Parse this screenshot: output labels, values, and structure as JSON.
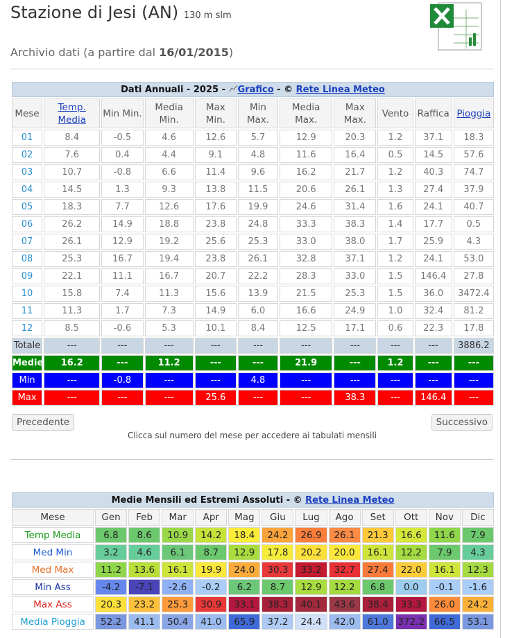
{
  "header": {
    "title": "Stazione di Jesi (AN)",
    "altitude": "130 m slm",
    "archive_prefix": "Archivio dati (a partire dal",
    "archive_date": "16/01/2015",
    "archive_suffix": ")"
  },
  "annual_table": {
    "title": "Dati Annuali - 2025 -",
    "chart_link": "Grafico",
    "copyright": "- ©",
    "source_link": "Rete Linea Meteo",
    "columns": [
      "Mese",
      "Temp. Media",
      "Min Min.",
      "Media Min.",
      "Max Min.",
      "Min Max.",
      "Media Max.",
      "Max Max.",
      "Vento",
      "Raffica",
      "Pioggia"
    ],
    "rows": [
      {
        "label": "01",
        "cells": [
          "8.4",
          "-0.5",
          "4.6",
          "12.6",
          "5.7",
          "12.9",
          "20.3",
          "1.2",
          "37.1",
          "18.3"
        ]
      },
      {
        "label": "02",
        "cells": [
          "7.6",
          "0.4",
          "4.4",
          "9.1",
          "4.8",
          "11.6",
          "16.4",
          "0.5",
          "14.5",
          "57.6"
        ]
      },
      {
        "label": "03",
        "cells": [
          "10.7",
          "-0.8",
          "6.6",
          "11.4",
          "9.6",
          "16.2",
          "21.7",
          "1.2",
          "40.3",
          "74.7"
        ]
      },
      {
        "label": "04",
        "cells": [
          "14.5",
          "1.3",
          "9.3",
          "13.8",
          "11.5",
          "20.6",
          "26.1",
          "1.3",
          "27.4",
          "37.9"
        ]
      },
      {
        "label": "05",
        "cells": [
          "18.3",
          "7.7",
          "12.6",
          "17.6",
          "19.9",
          "24.6",
          "31.4",
          "1.6",
          "24.1",
          "40.7"
        ]
      },
      {
        "label": "06",
        "cells": [
          "26.2",
          "14.9",
          "18.8",
          "23.8",
          "24.8",
          "33.3",
          "38.3",
          "1.4",
          "17.7",
          "0.5"
        ]
      },
      {
        "label": "07",
        "cells": [
          "26.1",
          "12.9",
          "19.2",
          "25.6",
          "25.3",
          "33.0",
          "38.0",
          "1.7",
          "25.9",
          "4.3"
        ]
      },
      {
        "label": "08",
        "cells": [
          "25.3",
          "16.7",
          "19.4",
          "23.8",
          "26.1",
          "32.8",
          "37.1",
          "1.2",
          "24.1",
          "53.0"
        ]
      },
      {
        "label": "09",
        "cells": [
          "22.1",
          "11.1",
          "16.7",
          "20.7",
          "22.2",
          "28.3",
          "33.0",
          "1.5",
          "146.4",
          "27.8"
        ]
      },
      {
        "label": "10",
        "cells": [
          "15.8",
          "7.4",
          "11.3",
          "15.6",
          "13.9",
          "21.5",
          "25.3",
          "1.5",
          "36.0",
          "3472.4"
        ]
      },
      {
        "label": "11",
        "cells": [
          "11.3",
          "1.7",
          "7.3",
          "14.9",
          "6.0",
          "16.6",
          "24.9",
          "1.0",
          "32.4",
          "81.2"
        ]
      },
      {
        "label": "12",
        "cells": [
          "8.5",
          "-0.6",
          "5.3",
          "10.1",
          "8.4",
          "12.5",
          "17.1",
          "0.6",
          "22.3",
          "17.8"
        ]
      }
    ],
    "summary_rows": [
      {
        "label": "Totale",
        "cells": [
          "---",
          "---",
          "---",
          "---",
          "---",
          "---",
          "---",
          "---",
          "---",
          "3886.2"
        ]
      },
      {
        "label": "Medie",
        "cells": [
          "16.2",
          "---",
          "11.2",
          "---",
          "---",
          "21.9",
          "---",
          "1.2",
          "---",
          "---"
        ]
      },
      {
        "label": "Min",
        "cells": [
          "---",
          "-0.8",
          "---",
          "---",
          "4.8",
          "---",
          "---",
          "---",
          "---",
          "---"
        ]
      },
      {
        "label": "Max",
        "cells": [
          "---",
          "---",
          "---",
          "25.6",
          "---",
          "---",
          "38.3",
          "---",
          "146.4",
          "---"
        ]
      }
    ]
  },
  "buttons": {
    "previous": "Precedente",
    "next": "Successivo"
  },
  "note": "Clicca sul numero del mese per accedere ai tabulati mensili",
  "monthly_table": {
    "title": "Medie Mensili ed Estremi Assoluti - ©",
    "source_link": "Rete Linea Meteo",
    "columns": [
      "Mese",
      "Gen",
      "Feb",
      "Mar",
      "Apr",
      "Mag",
      "Giu",
      "Lug",
      "Ago",
      "Set",
      "Ott",
      "Nov",
      "Dic"
    ],
    "rows": [
      {
        "label": "Temp Media",
        "values": [
          "6.8",
          "8.6",
          "10.9",
          "14.2",
          "18.4",
          "24.2",
          "26.9",
          "26.1",
          "21.3",
          "16.6",
          "11.6",
          "7.9"
        ],
        "colors": [
          "#6cc86c",
          "#6cc86c",
          "#9ad84a",
          "#c8e23a",
          "#fbec3a",
          "#fba43a",
          "#fb7f3a",
          "#fb8a44",
          "#fdc93a",
          "#d5e83a",
          "#8fd64a",
          "#6cc86c"
        ]
      },
      {
        "label": "Med Min",
        "values": [
          "3.2",
          "4.6",
          "6.1",
          "8.7",
          "12.9",
          "17.8",
          "20.2",
          "20.0",
          "16.1",
          "12.2",
          "7.9",
          "4.3"
        ],
        "colors": [
          "#66cc99",
          "#66cc99",
          "#6cc878",
          "#6cc86c",
          "#a9dc3e",
          "#f5ec3a",
          "#fde03a",
          "#fbe83a",
          "#cfe43a",
          "#a5da40",
          "#6cc86c",
          "#66cc99"
        ]
      },
      {
        "label": "Med Max",
        "values": [
          "11.2",
          "13.6",
          "16.1",
          "19.9",
          "24.0",
          "30.3",
          "33.2",
          "32.7",
          "27.4",
          "22.0",
          "16.1",
          "12.3"
        ],
        "colors": [
          "#8fd64a",
          "#b9de38",
          "#cfe43a",
          "#fbe83a",
          "#fbac3a",
          "#e8383a",
          "#c41a30",
          "#e83036",
          "#fb7a3a",
          "#fdcc3a",
          "#cfe43a",
          "#a5da40"
        ]
      },
      {
        "label": "Min Ass",
        "values": [
          "-4.2",
          "-7.1",
          "-2.6",
          "-0.2",
          "6.2",
          "8.7",
          "12.9",
          "12.2",
          "6.8",
          "0.0",
          "-0.1",
          "-1.6"
        ],
        "colors": [
          "#6688ee",
          "#4a44b8",
          "#8fb0f2",
          "#aacdf8",
          "#6cc878",
          "#6cc86c",
          "#a9dc3e",
          "#a5da40",
          "#6cc86c",
          "#9cccee",
          "#aacdf8",
          "#aacdf8"
        ]
      },
      {
        "label": "Max Ass",
        "values": [
          "20.3",
          "23.2",
          "25.3",
          "30.9",
          "33.1",
          "38.3",
          "40.1",
          "43.6",
          "38.4",
          "33.3",
          "26.0",
          "24.2"
        ],
        "colors": [
          "#fde03a",
          "#fdc03a",
          "#fb9a3a",
          "#e8383a",
          "#b41840",
          "#a8203a",
          "#a22a3c",
          "#9a3848",
          "#a8203a",
          "#b41840",
          "#fb8a3a",
          "#fbb03a"
        ]
      },
      {
        "label": "Media Pioggia",
        "values": [
          "52.2",
          "41.1",
          "50.4",
          "41.0",
          "65.9",
          "37.2",
          "24.4",
          "42.0",
          "61.0",
          "372.2",
          "66.5",
          "53.1"
        ],
        "colors": [
          "#7a98e0",
          "#9cbcf0",
          "#8aa6e6",
          "#9cbcf0",
          "#3f6ad8",
          "#aecaf2",
          "#cfe0f8",
          "#9cbcf0",
          "#4f78dc",
          "#7a30b0",
          "#3f6ad8",
          "#7a98e0"
        ]
      }
    ]
  }
}
